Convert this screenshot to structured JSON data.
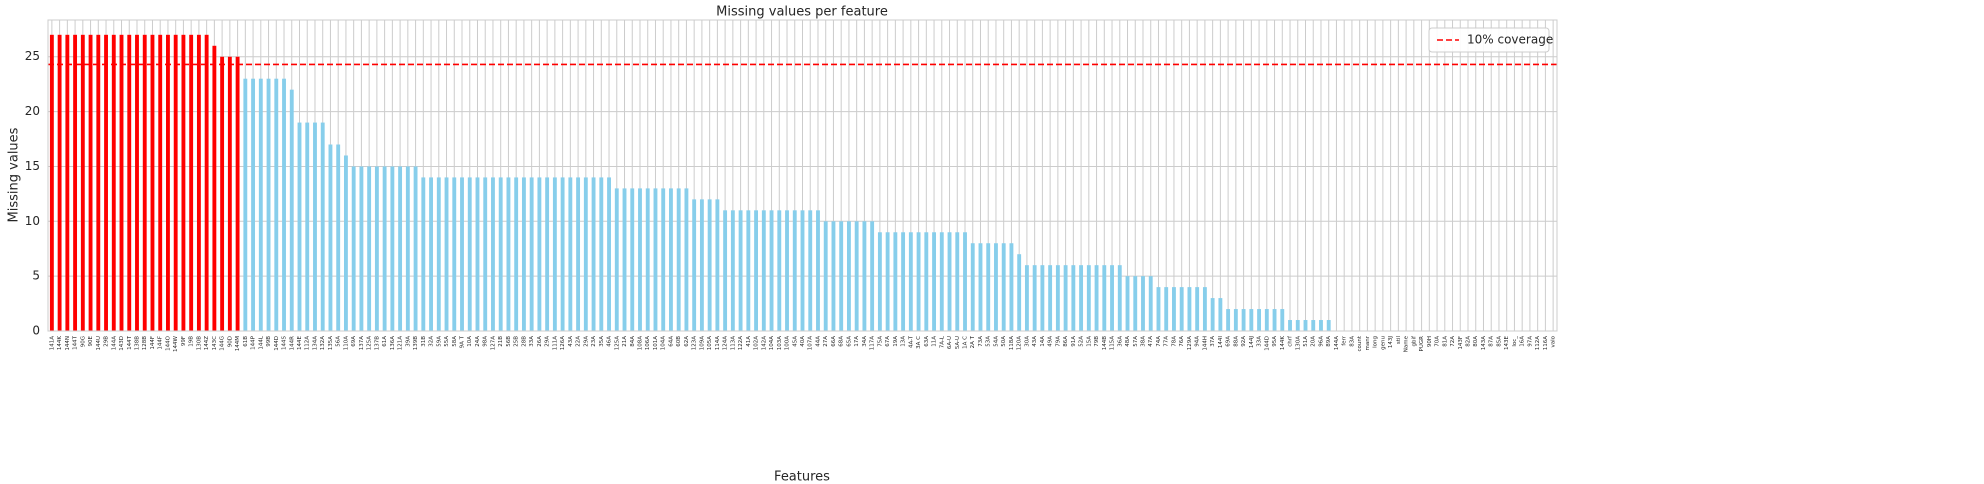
{
  "chart_data": {
    "type": "bar",
    "title": "Missing values per feature",
    "xlabel": "Features",
    "ylabel": "Missing values",
    "categories": [
      "141A",
      "144K",
      "144N",
      "144T",
      "90G",
      "90E",
      "144U",
      "29B",
      "144A",
      "143D",
      "144T",
      "138B",
      "128B",
      "144F",
      "144F",
      "144O",
      "144W",
      "99F",
      "19B",
      "130B",
      "144Z",
      "143C",
      "144G",
      "90D",
      "144M",
      "61B",
      "144P",
      "144L",
      "99B",
      "144D",
      "144S",
      "144R",
      "144E",
      "112A",
      "134A",
      "132A",
      "135A",
      "56A",
      "110A",
      "69A",
      "137A",
      "125A",
      "137B",
      "61A",
      "136A",
      "121A",
      "39A",
      "139B",
      "31B",
      "32A",
      "59A",
      "55A",
      "58A",
      "9A T",
      "10A",
      "24A",
      "98A",
      "127A",
      "21B",
      "56B",
      "25B",
      "28B",
      "33A",
      "26A",
      "29A",
      "111A",
      "126A",
      "43A",
      "22A",
      "29A",
      "23A",
      "35A",
      "46A",
      "125A",
      "21A",
      "84A",
      "108A",
      "106A",
      "101A",
      "104A",
      "64A",
      "60B",
      "62A",
      "123A",
      "109A",
      "105A",
      "114A",
      "124A",
      "113A",
      "122A",
      "41A",
      "102A",
      "142A",
      "104A",
      "103A",
      "100A",
      "45A",
      "40A",
      "107A",
      "44A",
      "27A",
      "66A",
      "68A",
      "65A",
      "17A",
      "34A",
      "117A",
      "75A",
      "67A",
      "19A",
      "13A",
      "4A-T",
      "3A C",
      "63A",
      "11A",
      "7A-L",
      "6A-U",
      "5A-U",
      "1A C",
      "2A T",
      "73A",
      "53A",
      "54A",
      "50A",
      "118A",
      "120A",
      "30A",
      "43A",
      "14A",
      "49A",
      "79A",
      "86A",
      "91A",
      "52A",
      "15A",
      "79B",
      "144B",
      "115A",
      "36A",
      "48A",
      "57A",
      "38A",
      "47A",
      "74A",
      "77A",
      "78A",
      "76A",
      "129A",
      "94A",
      "144H",
      "37A",
      "144I",
      "69A",
      "88A",
      "92A",
      "144J",
      "33A",
      "144D",
      "95A",
      "144K",
      "chrf",
      "130A",
      "51A",
      "20A",
      "96A",
      "89A",
      "144A",
      "ferr",
      "83A",
      "count",
      "manr",
      "long",
      "genu",
      "143J",
      "stil",
      "Name",
      "gbif",
      "PUGR",
      "90H",
      "70A",
      "81A",
      "72A",
      "143F",
      "82A",
      "80A",
      "143A",
      "87A",
      "85A",
      "143E",
      "loc_",
      "16A",
      "97A",
      "112A",
      "116A",
      "valo"
    ],
    "values": [
      27,
      27,
      27,
      27,
      27,
      27,
      27,
      27,
      27,
      27,
      27,
      27,
      27,
      27,
      27,
      27,
      27,
      27,
      27,
      27,
      27,
      26,
      25,
      25,
      25,
      23,
      23,
      23,
      23,
      23,
      23,
      22,
      19,
      19,
      19,
      19,
      17,
      17,
      16,
      15,
      15,
      15,
      15,
      15,
      15,
      15,
      15,
      15,
      14,
      14,
      14,
      14,
      14,
      14,
      14,
      14,
      14,
      14,
      14,
      14,
      14,
      14,
      14,
      14,
      14,
      14,
      14,
      14,
      14,
      14,
      14,
      14,
      14,
      13,
      13,
      13,
      13,
      13,
      13,
      13,
      13,
      13,
      13,
      12,
      12,
      12,
      12,
      11,
      11,
      11,
      11,
      11,
      11,
      11,
      11,
      11,
      11,
      11,
      11,
      11,
      10,
      10,
      10,
      10,
      10,
      10,
      10,
      9,
      9,
      9,
      9,
      9,
      9,
      9,
      9,
      9,
      9,
      9,
      9,
      8,
      8,
      8,
      8,
      8,
      8,
      7,
      6,
      6,
      6,
      6,
      6,
      6,
      6,
      6,
      6,
      6,
      6,
      6,
      6,
      5,
      5,
      5,
      5,
      4,
      4,
      4,
      4,
      4,
      4,
      4,
      3,
      3,
      2,
      2,
      2,
      2,
      2,
      2,
      2,
      2,
      1,
      1,
      1,
      1,
      1,
      1,
      0,
      0,
      0,
      0,
      0,
      0,
      0,
      0,
      0,
      0,
      0,
      0,
      0,
      0,
      0,
      0,
      0,
      0,
      0,
      0,
      0,
      0,
      0,
      0,
      0,
      0,
      0,
      0,
      0
    ],
    "color": "#87ceeb",
    "highlight_color": "#ff0000",
    "hline": {
      "value": 24.3,
      "label": "10% coverage",
      "color": "#ff0000"
    },
    "ylim": [
      0,
      28.35
    ],
    "yticks": [
      0,
      5,
      10,
      15,
      20,
      25
    ],
    "grid": true,
    "legend": "upper right"
  }
}
